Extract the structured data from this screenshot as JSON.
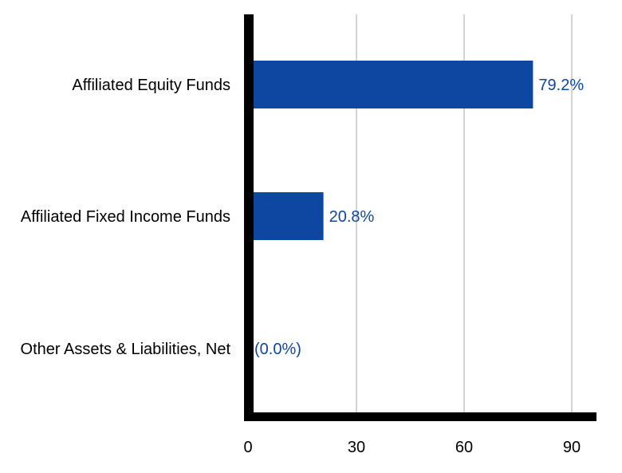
{
  "chart_data": {
    "type": "bar",
    "orientation": "horizontal",
    "categories": [
      "Affiliated Equity Funds",
      "Affiliated Fixed Income Funds",
      "Other Assets & Liabilities, Net"
    ],
    "values": [
      79.2,
      20.8,
      0.0
    ],
    "value_labels": [
      "79.2%",
      "20.8%",
      "(0.0%)"
    ],
    "xlim": [
      0,
      96
    ],
    "xticks": [
      0,
      30,
      60,
      90
    ],
    "xtick_labels": [
      "0",
      "30",
      "60",
      "90"
    ],
    "title": "",
    "xlabel": "",
    "ylabel": "",
    "grid": true,
    "colors": {
      "bar": "#0d47a1",
      "value_label": "#0d47a1",
      "grid": "#d3d3d3",
      "axis": "#000000"
    }
  }
}
